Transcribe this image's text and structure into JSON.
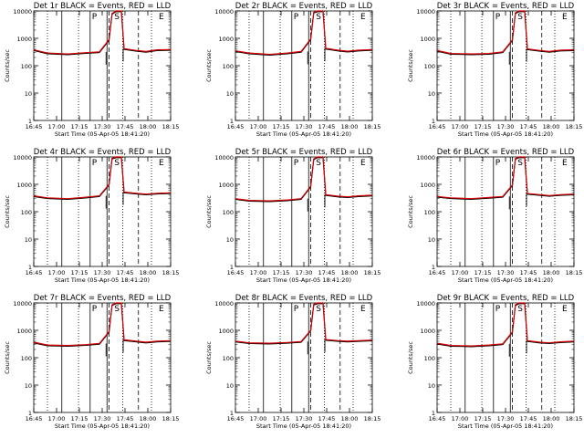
{
  "figure": {
    "ylabel": "Counts/sec",
    "xlabel": "Start Time (05-Apr-05 18:41:20)"
  },
  "chart_data": [
    {
      "type": "line",
      "title": "Det 1r BLACK = Events, RED = LLD",
      "ylog": true,
      "ylim": [
        1,
        10000
      ],
      "yticks": [
        "1",
        "10",
        "100",
        "1000",
        "10000"
      ],
      "xticks": [
        "16:45",
        "17:00",
        "17:15",
        "17:30",
        "17:45",
        "18:00",
        "18:15"
      ],
      "xlabel": "Start Time (05-Apr-05 18:41:20)",
      "ylabel": "Counts/sec",
      "markers": [
        "P",
        "S",
        "E"
      ],
      "series": [
        {
          "color": "#000000",
          "x": [
            0,
            0.1,
            0.25,
            0.38,
            0.48,
            0.55,
            0.572,
            0.6,
            0.64,
            0.66,
            0.75,
            0.82,
            0.9,
            1
          ],
          "values": [
            380,
            290,
            270,
            300,
            320,
            900,
            8000,
            10000,
            10000,
            420,
            360,
            330,
            380,
            390
          ]
        },
        {
          "color": "#d40000",
          "x": [
            0,
            0.1,
            0.25,
            0.38,
            0.48,
            0.55,
            0.572,
            0.6,
            0.64,
            0.66,
            0.75,
            0.82,
            0.9,
            1
          ],
          "values": [
            380,
            290,
            270,
            300,
            320,
            900,
            8000,
            10000,
            10000,
            420,
            360,
            330,
            380,
            390
          ]
        }
      ]
    },
    {
      "type": "line",
      "title": "Det 2r BLACK = Events, RED = LLD",
      "ylog": true,
      "ylim": [
        1,
        10000
      ],
      "yticks": [
        "1",
        "10",
        "100",
        "1000",
        "10000"
      ],
      "xticks": [
        "16:45",
        "17:00",
        "17:15",
        "17:30",
        "17:45",
        "18:00",
        "18:15"
      ],
      "xlabel": "Start Time (05-Apr-05 18:41:20)",
      "ylabel": "Counts/sec",
      "markers": [
        "P",
        "S",
        "E"
      ],
      "series": [
        {
          "color": "#000000",
          "x": [
            0,
            0.1,
            0.25,
            0.38,
            0.48,
            0.55,
            0.572,
            0.6,
            0.64,
            0.66,
            0.75,
            0.82,
            0.9,
            1
          ],
          "values": [
            350,
            290,
            260,
            290,
            330,
            950,
            9000,
            10000,
            10000,
            430,
            370,
            340,
            370,
            390
          ]
        },
        {
          "color": "#d40000",
          "x": [
            0,
            0.1,
            0.25,
            0.38,
            0.48,
            0.55,
            0.572,
            0.6,
            0.64,
            0.66,
            0.75,
            0.82,
            0.9,
            1
          ],
          "values": [
            350,
            290,
            260,
            290,
            330,
            950,
            9000,
            10000,
            10000,
            430,
            370,
            340,
            370,
            390
          ]
        }
      ]
    },
    {
      "type": "line",
      "title": "Det 3r BLACK = Events, RED = LLD",
      "ylog": true,
      "ylim": [
        1,
        10000
      ],
      "yticks": [
        "1",
        "10",
        "100",
        "1000",
        "10000"
      ],
      "xticks": [
        "16:45",
        "17:00",
        "17:15",
        "17:30",
        "17:45",
        "18:00",
        "18:15"
      ],
      "xlabel": "Start Time (05-Apr-05 18:41:20)",
      "ylabel": "Counts/sec",
      "markers": [
        "P",
        "S",
        "E"
      ],
      "series": [
        {
          "color": "#000000",
          "x": [
            0,
            0.1,
            0.25,
            0.38,
            0.48,
            0.55,
            0.572,
            0.6,
            0.64,
            0.66,
            0.75,
            0.82,
            0.9,
            1
          ],
          "values": [
            360,
            280,
            270,
            280,
            320,
            880,
            8500,
            10000,
            10000,
            410,
            360,
            330,
            370,
            380
          ]
        },
        {
          "color": "#d40000",
          "x": [
            0,
            0.1,
            0.25,
            0.38,
            0.48,
            0.55,
            0.572,
            0.6,
            0.64,
            0.66,
            0.75,
            0.82,
            0.9,
            1
          ],
          "values": [
            360,
            280,
            270,
            280,
            320,
            880,
            8500,
            10000,
            10000,
            410,
            360,
            330,
            370,
            380
          ]
        }
      ]
    },
    {
      "type": "line",
      "title": "Det 4r BLACK = Events, RED = LLD",
      "ylog": true,
      "ylim": [
        1,
        10000
      ],
      "yticks": [
        "1",
        "10",
        "100",
        "1000",
        "10000"
      ],
      "xticks": [
        "16:45",
        "17:00",
        "17:15",
        "17:30",
        "17:45",
        "18:00",
        "18:15"
      ],
      "xlabel": "Start Time (05-Apr-05 18:41:20)",
      "ylabel": "Counts/sec",
      "markers": [
        "P",
        "S",
        "E"
      ],
      "series": [
        {
          "color": "#000000",
          "x": [
            0,
            0.1,
            0.25,
            0.38,
            0.48,
            0.55,
            0.572,
            0.6,
            0.64,
            0.66,
            0.75,
            0.82,
            0.9,
            1
          ],
          "values": [
            380,
            320,
            300,
            340,
            380,
            1000,
            9000,
            10000,
            10000,
            520,
            470,
            440,
            470,
            490
          ]
        },
        {
          "color": "#d40000",
          "x": [
            0,
            0.1,
            0.25,
            0.38,
            0.48,
            0.55,
            0.572,
            0.6,
            0.64,
            0.66,
            0.75,
            0.82,
            0.9,
            1
          ],
          "values": [
            380,
            320,
            300,
            340,
            380,
            1000,
            9000,
            10000,
            10000,
            520,
            470,
            440,
            470,
            490
          ]
        }
      ]
    },
    {
      "type": "line",
      "title": "Det 5r BLACK = Events, RED = LLD",
      "ylog": true,
      "ylim": [
        1,
        10000
      ],
      "yticks": [
        "1",
        "10",
        "100",
        "1000",
        "10000"
      ],
      "xticks": [
        "16:45",
        "17:00",
        "17:15",
        "17:30",
        "17:45",
        "18:00",
        "18:15"
      ],
      "xlabel": "Start Time (05-Apr-05 18:41:20)",
      "ylabel": "Counts/sec",
      "markers": [
        "P",
        "S",
        "E"
      ],
      "series": [
        {
          "color": "#000000",
          "x": [
            0,
            0.1,
            0.25,
            0.38,
            0.48,
            0.55,
            0.572,
            0.6,
            0.64,
            0.66,
            0.75,
            0.82,
            0.9,
            1
          ],
          "values": [
            300,
            260,
            250,
            270,
            300,
            850,
            8500,
            10000,
            10000,
            420,
            370,
            350,
            380,
            400
          ]
        },
        {
          "color": "#d40000",
          "x": [
            0,
            0.1,
            0.25,
            0.38,
            0.48,
            0.55,
            0.572,
            0.6,
            0.64,
            0.66,
            0.75,
            0.82,
            0.9,
            1
          ],
          "values": [
            300,
            260,
            250,
            270,
            300,
            850,
            8500,
            10000,
            10000,
            420,
            370,
            350,
            380,
            400
          ]
        }
      ]
    },
    {
      "type": "line",
      "title": "Det 6r BLACK = Events, RED = LLD",
      "ylog": true,
      "ylim": [
        1,
        10000
      ],
      "yticks": [
        "1",
        "10",
        "100",
        "1000",
        "10000"
      ],
      "xticks": [
        "16:45",
        "17:00",
        "17:15",
        "17:30",
        "17:45",
        "18:00",
        "18:15"
      ],
      "xlabel": "Start Time (05-Apr-05 18:41:20)",
      "ylabel": "Counts/sec",
      "markers": [
        "P",
        "S",
        "E"
      ],
      "series": [
        {
          "color": "#000000",
          "x": [
            0,
            0.1,
            0.25,
            0.38,
            0.48,
            0.55,
            0.572,
            0.6,
            0.64,
            0.66,
            0.75,
            0.82,
            0.9,
            1
          ],
          "values": [
            360,
            320,
            300,
            330,
            360,
            950,
            8800,
            10000,
            10000,
            460,
            420,
            390,
            420,
            440
          ]
        },
        {
          "color": "#d40000",
          "x": [
            0,
            0.1,
            0.25,
            0.38,
            0.48,
            0.55,
            0.572,
            0.6,
            0.64,
            0.66,
            0.75,
            0.82,
            0.9,
            1
          ],
          "values": [
            360,
            320,
            300,
            330,
            360,
            950,
            8800,
            10000,
            10000,
            460,
            420,
            390,
            420,
            440
          ]
        }
      ]
    },
    {
      "type": "line",
      "title": "Det 7r BLACK = Events, RED = LLD",
      "ylog": true,
      "ylim": [
        1,
        10000
      ],
      "yticks": [
        "1",
        "10",
        "100",
        "1000",
        "10000"
      ],
      "xticks": [
        "16:45",
        "17:00",
        "17:15",
        "17:30",
        "17:45",
        "18:00",
        "18:15"
      ],
      "xlabel": "Start Time (05-Apr-05 18:41:20)",
      "ylabel": "Counts/sec",
      "markers": [
        "P",
        "S",
        "E"
      ],
      "series": [
        {
          "color": "#000000",
          "x": [
            0,
            0.1,
            0.25,
            0.38,
            0.48,
            0.55,
            0.572,
            0.6,
            0.64,
            0.66,
            0.75,
            0.82,
            0.9,
            1
          ],
          "values": [
            370,
            290,
            280,
            300,
            330,
            900,
            8500,
            10000,
            10000,
            450,
            400,
            370,
            400,
            420
          ]
        },
        {
          "color": "#d40000",
          "x": [
            0,
            0.1,
            0.25,
            0.38,
            0.48,
            0.55,
            0.572,
            0.6,
            0.64,
            0.66,
            0.75,
            0.82,
            0.9,
            1
          ],
          "values": [
            370,
            290,
            280,
            300,
            330,
            900,
            8500,
            10000,
            10000,
            450,
            400,
            370,
            400,
            420
          ]
        }
      ]
    },
    {
      "type": "line",
      "title": "Det 8r BLACK = Events, RED = LLD",
      "ylog": true,
      "ylim": [
        1,
        10000
      ],
      "yticks": [
        "1",
        "10",
        "100",
        "1000",
        "10000"
      ],
      "xticks": [
        "16:45",
        "17:00",
        "17:15",
        "17:30",
        "17:45",
        "18:00",
        "18:15"
      ],
      "xlabel": "Start Time (05-Apr-05 18:41:20)",
      "ylabel": "Counts/sec",
      "markers": [
        "P",
        "S",
        "E"
      ],
      "series": [
        {
          "color": "#000000",
          "x": [
            0,
            0.1,
            0.25,
            0.38,
            0.48,
            0.55,
            0.572,
            0.6,
            0.64,
            0.66,
            0.75,
            0.82,
            0.9,
            1
          ],
          "values": [
            400,
            350,
            340,
            360,
            390,
            1000,
            9000,
            10000,
            10000,
            460,
            420,
            400,
            420,
            440
          ]
        },
        {
          "color": "#d40000",
          "x": [
            0,
            0.1,
            0.25,
            0.38,
            0.48,
            0.55,
            0.572,
            0.6,
            0.64,
            0.66,
            0.75,
            0.82,
            0.9,
            1
          ],
          "values": [
            400,
            350,
            340,
            360,
            390,
            1000,
            9000,
            10000,
            10000,
            460,
            420,
            400,
            420,
            440
          ]
        }
      ]
    },
    {
      "type": "line",
      "title": "Det 9r BLACK = Events, RED = LLD",
      "ylog": true,
      "ylim": [
        1,
        10000
      ],
      "yticks": [
        "1",
        "10",
        "100",
        "1000",
        "10000"
      ],
      "xticks": [
        "16:45",
        "17:00",
        "17:15",
        "17:30",
        "17:45",
        "18:00",
        "18:15"
      ],
      "xlabel": "Start Time (05-Apr-05 18:41:20)",
      "ylabel": "Counts/sec",
      "markers": [
        "P",
        "S",
        "E"
      ],
      "series": [
        {
          "color": "#000000",
          "x": [
            0,
            0.1,
            0.25,
            0.38,
            0.48,
            0.55,
            0.572,
            0.6,
            0.64,
            0.66,
            0.75,
            0.82,
            0.9,
            1
          ],
          "values": [
            340,
            280,
            270,
            290,
            320,
            880,
            8500,
            10000,
            10000,
            420,
            370,
            350,
            380,
            400
          ]
        },
        {
          "color": "#d40000",
          "x": [
            0,
            0.1,
            0.25,
            0.38,
            0.48,
            0.55,
            0.572,
            0.6,
            0.64,
            0.66,
            0.75,
            0.82,
            0.9,
            1
          ],
          "values": [
            340,
            280,
            270,
            290,
            320,
            880,
            8500,
            10000,
            10000,
            420,
            370,
            350,
            380,
            400
          ]
        }
      ]
    }
  ]
}
